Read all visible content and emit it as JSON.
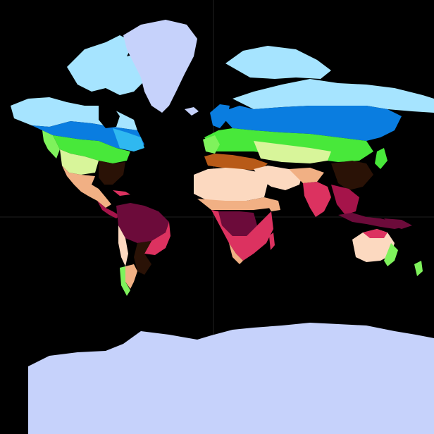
{
  "map": {
    "projection": "mercator",
    "background": "#000000",
    "graticule": true,
    "legend": "none",
    "classes": [
      {
        "id": "ice",
        "color": "#c6d2fb"
      },
      {
        "id": "tundra",
        "color": "#a6e4ff"
      },
      {
        "id": "subarctic",
        "color": "#0a7de0"
      },
      {
        "id": "humid-continental-cool",
        "color": "#2fb8f0"
      },
      {
        "id": "humid-continental",
        "color": "#48e83a"
      },
      {
        "id": "temperate-oceanic",
        "color": "#7ff25c"
      },
      {
        "id": "cold-steppe",
        "color": "#d8f59a"
      },
      {
        "id": "humid-subtropical",
        "color": "#2a1206"
      },
      {
        "id": "mediterranean",
        "color": "#b85a18"
      },
      {
        "id": "hot-steppe",
        "color": "#f1b084"
      },
      {
        "id": "hot-desert",
        "color": "#fcd9c0"
      },
      {
        "id": "tropical-savanna",
        "color": "#dc3260"
      },
      {
        "id": "tropical-monsoon",
        "color": "#a5144a"
      },
      {
        "id": "tropical-rainforest",
        "color": "#6c0b3a"
      }
    ]
  }
}
